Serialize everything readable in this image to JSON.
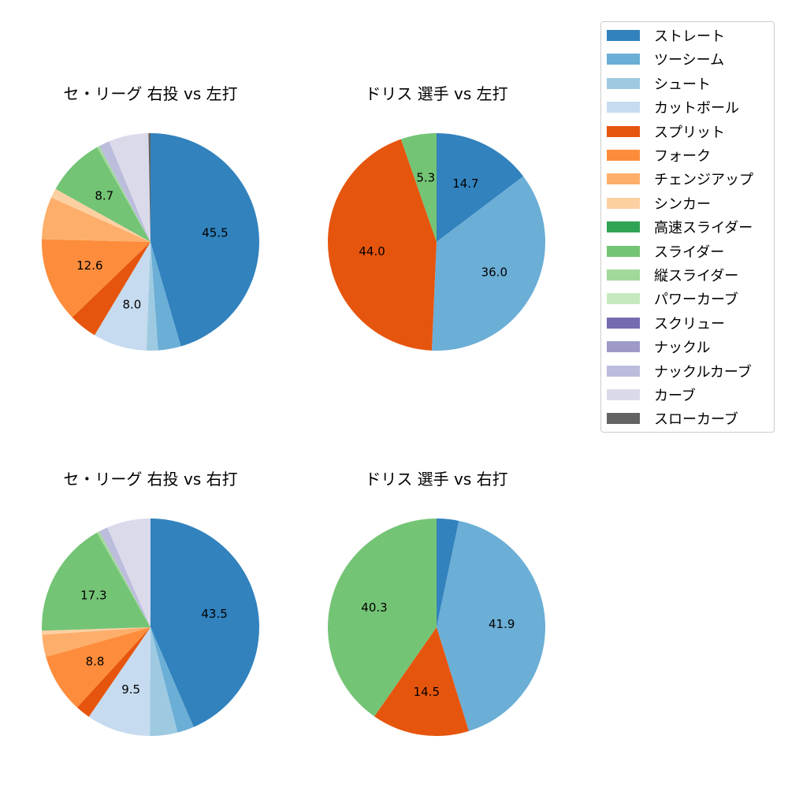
{
  "legend": {
    "items": [
      {
        "label": "ストレート",
        "color": "#3182bd"
      },
      {
        "label": "ツーシーム",
        "color": "#6baed6"
      },
      {
        "label": "シュート",
        "color": "#9ecae1"
      },
      {
        "label": "カットボール",
        "color": "#c6dbef"
      },
      {
        "label": "スプリット",
        "color": "#e6550d"
      },
      {
        "label": "フォーク",
        "color": "#fd8d3c"
      },
      {
        "label": "チェンジアップ",
        "color": "#fdae6b"
      },
      {
        "label": "シンカー",
        "color": "#fdd0a2"
      },
      {
        "label": "高速スライダー",
        "color": "#31a354"
      },
      {
        "label": "スライダー",
        "color": "#74c476"
      },
      {
        "label": "縦スライダー",
        "color": "#a1d99b"
      },
      {
        "label": "パワーカーブ",
        "color": "#c7e9c0"
      },
      {
        "label": "スクリュー",
        "color": "#756bb1"
      },
      {
        "label": "ナックル",
        "color": "#9e9ac8"
      },
      {
        "label": "ナックルカーブ",
        "color": "#bcbddc"
      },
      {
        "label": "カーブ",
        "color": "#dadaeb"
      },
      {
        "label": "スローカーブ",
        "color": "#636363"
      }
    ]
  },
  "chart_data": [
    {
      "type": "pie",
      "title": "セ・リーグ 右投 vs 左打",
      "categories": [
        "ストレート",
        "ツーシーム",
        "シュート",
        "カットボール",
        "スプリット",
        "フォーク",
        "チェンジアップ",
        "シンカー",
        "スライダー",
        "縦スライダー",
        "ナックルカーブ",
        "カーブ",
        "スローカーブ"
      ],
      "values": [
        45.5,
        3.4,
        1.7,
        8.0,
        4.2,
        12.6,
        6.3,
        1.4,
        8.7,
        0.4,
        1.6,
        5.9,
        0.3
      ],
      "labels_shown": [
        "45.5",
        "",
        "",
        "8.0",
        "",
        "12.6",
        "",
        "",
        "8.7",
        "",
        "",
        "",
        ""
      ],
      "startangle": 90,
      "counterclock": false
    },
    {
      "type": "pie",
      "title": "ドリス 選手 vs 左打",
      "categories": [
        "ストレート",
        "ツーシーム",
        "スプリット",
        "スライダー"
      ],
      "values": [
        14.7,
        36.0,
        44.0,
        5.3
      ],
      "labels_shown": [
        "14.7",
        "36.0",
        "44.0",
        "5.3"
      ],
      "startangle": 90,
      "counterclock": false
    },
    {
      "type": "pie",
      "title": "セ・リーグ 右投 vs 右打",
      "categories": [
        "ストレート",
        "ツーシーム",
        "シュート",
        "カットボール",
        "スプリット",
        "フォーク",
        "チェンジアップ",
        "シンカー",
        "スライダー",
        "縦スライダー",
        "ナックルカーブ",
        "カーブ"
      ],
      "values": [
        43.5,
        2.5,
        4.1,
        9.5,
        2.2,
        8.8,
        3.3,
        0.6,
        17.3,
        0.4,
        1.3,
        6.5
      ],
      "labels_shown": [
        "43.5",
        "",
        "",
        "9.5",
        "",
        "8.8",
        "",
        "",
        "17.3",
        "",
        "",
        ""
      ],
      "startangle": 90,
      "counterclock": false
    },
    {
      "type": "pie",
      "title": "ドリス 選手 vs 右打",
      "categories": [
        "ストレート",
        "ツーシーム",
        "スプリット",
        "スライダー"
      ],
      "values": [
        3.3,
        41.9,
        14.5,
        40.3
      ],
      "labels_shown": [
        "",
        "41.9",
        "14.5",
        "40.3"
      ],
      "startangle": 90,
      "counterclock": false
    }
  ]
}
